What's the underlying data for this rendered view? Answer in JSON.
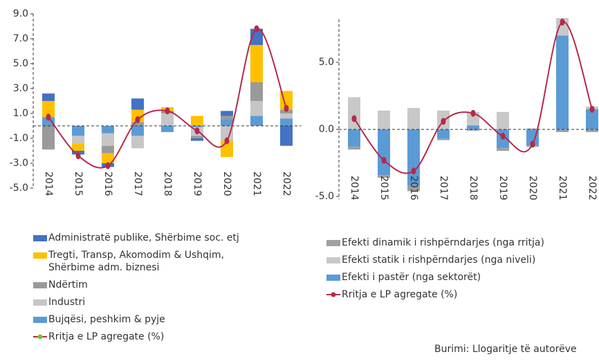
{
  "chart_data": [
    {
      "type": "bar",
      "stacked": true,
      "categories": [
        "2014",
        "2015",
        "2016",
        "2017",
        "2018",
        "2019",
        "2020",
        "2021",
        "2022"
      ],
      "ylim": [
        -5,
        9
      ],
      "yticks": [
        {
          "value": -5,
          "label": "-5.0"
        },
        {
          "value": -3,
          "label": "-3.0"
        },
        {
          "value": -1,
          "label": "-1.0"
        },
        {
          "value": 1,
          "label": "1.0"
        },
        {
          "value": 3,
          "label": "3.0"
        },
        {
          "value": 5,
          "label": "5.0"
        },
        {
          "value": 7,
          "label": "7.0"
        },
        {
          "value": 9,
          "label": "9.0"
        }
      ],
      "series": [
        {
          "name": "Administratë publike, Shërbime soc. etj",
          "color": "#4472c4",
          "values": [
            0.6,
            -0.3,
            -0.3,
            0.9,
            0,
            -0.2,
            0.4,
            1.3,
            -1.6
          ]
        },
        {
          "name": "Tregti, Transp, Akomodim & Ushqim, Shërbime adm. biznesi",
          "color": "#ffc000",
          "values": [
            1.3,
            -0.6,
            -0.8,
            1.0,
            0.3,
            0.8,
            -1.3,
            3.0,
            1.5
          ]
        },
        {
          "name": "Ndërtim",
          "color": "#9a9a9a",
          "values": [
            -1.9,
            0,
            -0.6,
            0.3,
            0.2,
            -0.2,
            0.3,
            1.5,
            0.3
          ]
        },
        {
          "name": "Industri",
          "color": "#c6c6c6",
          "values": [
            0,
            -0.6,
            -1.0,
            -1.0,
            1.0,
            -0.7,
            -1.2,
            1.2,
            0.4
          ]
        },
        {
          "name": "Bujqësi, peshkim & pyje",
          "color": "#5b9bd5",
          "values": [
            0.7,
            -0.8,
            -0.6,
            -0.8,
            -0.5,
            -0.1,
            0.5,
            0.8,
            0.6
          ]
        }
      ],
      "line": {
        "name": "Rritja e LP agregate (%)",
        "color": "#b5294a",
        "marker_color": "#7cbf3a",
        "values": [
          0.7,
          -2.4,
          -3.2,
          0.5,
          1.2,
          -0.4,
          -1.2,
          7.8,
          1.4
        ]
      }
    },
    {
      "type": "bar",
      "stacked": true,
      "categories": [
        "2014",
        "2015",
        "2016",
        "2017",
        "2018",
        "2019",
        "2020",
        "2021",
        "2022"
      ],
      "ylim": [
        -5.2,
        8.2
      ],
      "yticks": [
        {
          "value": -5,
          "label": "-5.0"
        },
        {
          "value": 0,
          "label": "0.0"
        },
        {
          "value": 5,
          "label": "5.0"
        }
      ],
      "series": [
        {
          "name": "Efekti dinamik i rishpërndarjes (nga rritja)",
          "color": "#a0a0a0",
          "values": [
            -0.2,
            -0.2,
            -0.4,
            -0.1,
            -0.1,
            -0.2,
            -0.1,
            -0.2,
            -0.2
          ]
        },
        {
          "name": "Efekti statik i rishpërndarjes (nga niveli)",
          "color": "#c8c8c8",
          "values": [
            2.4,
            1.4,
            1.6,
            1.4,
            1.0,
            1.3,
            0.1,
            1.3,
            0.2
          ]
        },
        {
          "name": "Efekti i pastër (nga sektorët)",
          "color": "#5b9bd5",
          "values": [
            -1.3,
            -3.4,
            -4.2,
            -0.7,
            0.3,
            -1.4,
            -1.2,
            7.0,
            1.5
          ]
        }
      ],
      "line": {
        "name": "Rritja e LP agregate (%)",
        "color": "#b5294a",
        "marker_color": "#b5294a",
        "values": [
          0.8,
          -2.3,
          -3.1,
          0.6,
          1.2,
          -0.5,
          -1.1,
          8.0,
          1.5
        ]
      }
    }
  ],
  "source": "Burimi: Llogaritje të autorëve"
}
